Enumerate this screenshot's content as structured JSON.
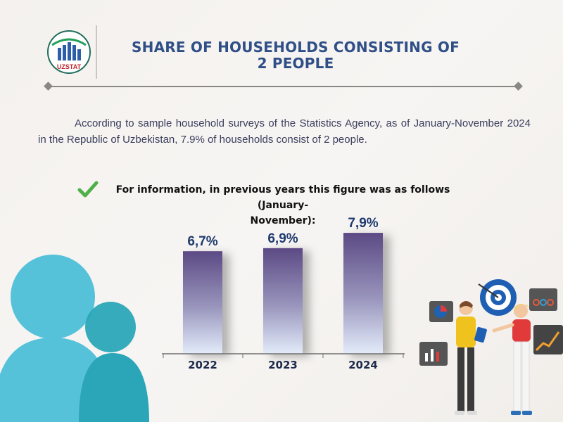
{
  "header": {
    "logo_text": "UZSTAT",
    "title_line1": "SHARE OF HOUSEHOLDS CONSISTING OF",
    "title_line2": "2 PEOPLE"
  },
  "intro_text": "According to sample household surveys of the Statistics Agency, as of January-November 2024 in the Republic of Uzbekistan, 7.9% of households consist of 2 people.",
  "note": {
    "line1": "For information, in previous years this figure was as follows (January-",
    "line2": "November):"
  },
  "colors": {
    "title": "#2f4f86",
    "bar_top": "#5c4a85",
    "bar_bottom": "#e3ecfa",
    "label": "#1e3a6e",
    "check": "#4fb04a"
  },
  "chart_data": {
    "type": "bar",
    "categories": [
      "2022",
      "2023",
      "2024"
    ],
    "values": [
      6.7,
      6.9,
      7.9
    ],
    "value_labels": [
      "6,7%",
      "6,9%",
      "7,9%"
    ],
    "unit": "%",
    "ylim": [
      0,
      8.5
    ],
    "grid": false,
    "legend": "none"
  }
}
